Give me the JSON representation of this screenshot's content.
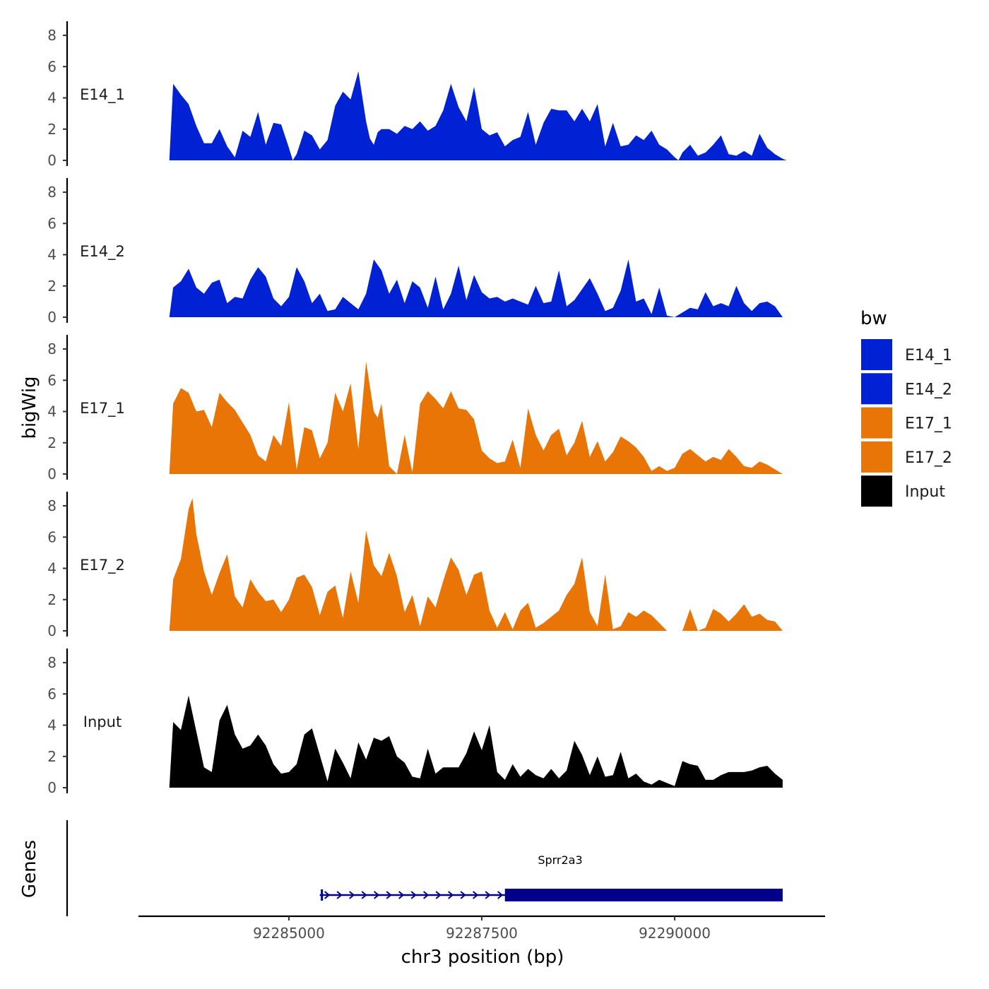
{
  "chart_data": {
    "type": "area",
    "ylabel": "bigWig",
    "xlabel": "chr3 position (bp)",
    "genes_label": "Genes",
    "xlim": [
      92283050,
      92291950
    ],
    "x_ticks": [
      92285000,
      92287500,
      92290000
    ],
    "x_tick_labels": [
      "92285000",
      "92287500",
      "92290000"
    ],
    "ylim": [
      0,
      8.5
    ],
    "y_ticks": [
      0,
      2,
      4,
      6,
      8
    ],
    "y_tick_labels": [
      "0",
      "2",
      "4",
      "6",
      "8"
    ],
    "legend": {
      "title": "bw",
      "position": "right",
      "entries": [
        {
          "label": "E14_1",
          "color": "#0022d4"
        },
        {
          "label": "E14_2",
          "color": "#0022d4"
        },
        {
          "label": "E17_1",
          "color": "#e87506"
        },
        {
          "label": "E17_2",
          "color": "#e87506"
        },
        {
          "label": "Input",
          "color": "#000000"
        }
      ]
    },
    "series": [
      {
        "name": "E14_1",
        "color": "#0022d4",
        "x": [
          92283450,
          92283500,
          92283600,
          92283700,
          92283800,
          92283900,
          92284000,
          92284100,
          92284200,
          92284300,
          92284400,
          92284500,
          92284600,
          92284700,
          92284800,
          92284900,
          92285000,
          92285050,
          92285100,
          92285200,
          92285300,
          92285400,
          92285500,
          92285600,
          92285700,
          92285800,
          92285900,
          92286000,
          92286050,
          92286100,
          92286150,
          92286200,
          92286300,
          92286400,
          92286500,
          92286600,
          92286700,
          92286800,
          92286900,
          92287000,
          92287100,
          92287200,
          92287300,
          92287400,
          92287500,
          92287600,
          92287700,
          92287800,
          92287900,
          92288000,
          92288100,
          92288200,
          92288300,
          92288400,
          92288500,
          92288600,
          92288700,
          92288800,
          92288900,
          92289000,
          92289100,
          92289200,
          92289300,
          92289400,
          92289500,
          92289600,
          92289700,
          92289800,
          92289900,
          92290000,
          92290050,
          92290100,
          92290200,
          92290300,
          92290400,
          92290500,
          92290600,
          92290700,
          92290800,
          92290900,
          92291000,
          92291100,
          92291200,
          92291300,
          92291400,
          92291450
        ],
        "y": [
          0,
          4.9,
          4.2,
          3.6,
          2.2,
          1.1,
          1.1,
          2.0,
          0.9,
          0.2,
          1.9,
          1.5,
          3.1,
          1.0,
          2.4,
          2.3,
          0.8,
          0,
          0.4,
          1.9,
          1.6,
          0.7,
          1.3,
          3.5,
          4.4,
          3.9,
          5.7,
          2.5,
          1.4,
          1.0,
          1.8,
          2.0,
          2.0,
          1.7,
          2.2,
          2.0,
          2.5,
          1.9,
          2.2,
          3.2,
          4.9,
          3.4,
          2.5,
          4.7,
          2.0,
          1.6,
          1.8,
          0.9,
          1.3,
          1.5,
          3.1,
          1.0,
          2.4,
          3.3,
          3.2,
          3.2,
          2.5,
          3.3,
          2.5,
          3.6,
          0.9,
          2.4,
          0.9,
          1.0,
          1.6,
          1.3,
          1.9,
          1.0,
          0.7,
          0.2,
          0,
          0.5,
          1.0,
          0.3,
          0.5,
          1.0,
          1.6,
          0.4,
          0.3,
          0.6,
          0.3,
          1.7,
          0.8,
          0.4,
          0.1,
          0
        ]
      },
      {
        "name": "E14_2",
        "color": "#0022d4",
        "x": [
          92283450,
          92283500,
          92283600,
          92283700,
          92283800,
          92283900,
          92284000,
          92284100,
          92284200,
          92284300,
          92284400,
          92284500,
          92284600,
          92284700,
          92284800,
          92284900,
          92285000,
          92285100,
          92285200,
          92285300,
          92285400,
          92285500,
          92285600,
          92285700,
          92285800,
          92285900,
          92286000,
          92286100,
          92286200,
          92286300,
          92286400,
          92286500,
          92286600,
          92286700,
          92286800,
          92286900,
          92287000,
          92287100,
          92287200,
          92287300,
          92287400,
          92287500,
          92287600,
          92287700,
          92287800,
          92287900,
          92288000,
          92288100,
          92288200,
          92288300,
          92288400,
          92288500,
          92288600,
          92288700,
          92288800,
          92288900,
          92289000,
          92289100,
          92289200,
          92289300,
          92289400,
          92289500,
          92289600,
          92289700,
          92289800,
          92289900,
          92290000,
          92290100,
          92290200,
          92290300,
          92290400,
          92290500,
          92290600,
          92290700,
          92290800,
          92290900,
          92291000,
          92291100,
          92291200,
          92291300,
          92291400
        ],
        "y": [
          0,
          1.9,
          2.3,
          3.1,
          1.9,
          1.5,
          2.2,
          2.4,
          0.9,
          1.3,
          1.2,
          2.4,
          3.2,
          2.6,
          1.2,
          0.7,
          1.3,
          3.2,
          2.3,
          0.9,
          1.5,
          0.4,
          0.5,
          1.3,
          0.9,
          0.5,
          1.5,
          3.7,
          3.0,
          1.5,
          2.4,
          0.9,
          2.3,
          1.9,
          0.6,
          2.6,
          0.5,
          1.5,
          3.3,
          1.1,
          2.7,
          1.6,
          1.2,
          1.3,
          1.0,
          1.2,
          1.0,
          0.8,
          2.0,
          0.9,
          1.0,
          3.0,
          0.7,
          1.1,
          1.8,
          2.5,
          1.5,
          0.4,
          0.6,
          1.7,
          3.7,
          1.0,
          1.2,
          0.2,
          1.9,
          0.1,
          0,
          0.3,
          0.6,
          0.5,
          1.6,
          0.7,
          0.9,
          0.7,
          2.0,
          0.9,
          0.4,
          0.9,
          1.0,
          0.7,
          0
        ]
      },
      {
        "name": "E17_1",
        "color": "#e87506",
        "x": [
          92283450,
          92283500,
          92283600,
          92283700,
          92283800,
          92283900,
          92284000,
          92284100,
          92284200,
          92284300,
          92284400,
          92284500,
          92284600,
          92284700,
          92284800,
          92284900,
          92285000,
          92285100,
          92285200,
          92285300,
          92285400,
          92285500,
          92285600,
          92285700,
          92285800,
          92285900,
          92286000,
          92286100,
          92286150,
          92286200,
          92286300,
          92286400,
          92286500,
          92286600,
          92286700,
          92286800,
          92286900,
          92287000,
          92287100,
          92287200,
          92287300,
          92287400,
          92287500,
          92287600,
          92287700,
          92287800,
          92287900,
          92288000,
          92288100,
          92288200,
          92288300,
          92288400,
          92288500,
          92288600,
          92288700,
          92288800,
          92288900,
          92289000,
          92289100,
          92289200,
          92289300,
          92289400,
          92289500,
          92289600,
          92289700,
          92289800,
          92289900,
          92290000,
          92290100,
          92290200,
          92290300,
          92290400,
          92290500,
          92290600,
          92290700,
          92290800,
          92290900,
          92291000,
          92291100,
          92291200,
          92291300,
          92291400
        ],
        "y": [
          0,
          4.5,
          5.5,
          5.2,
          4.0,
          4.1,
          3.0,
          5.2,
          4.6,
          4.1,
          3.3,
          2.5,
          1.2,
          0.8,
          2.5,
          1.8,
          4.6,
          0.3,
          3.0,
          2.8,
          1.0,
          2.0,
          5.2,
          4.0,
          5.8,
          1.6,
          7.2,
          4.0,
          3.6,
          4.5,
          0.5,
          0,
          2.5,
          0.1,
          4.5,
          5.3,
          4.8,
          4.2,
          5.3,
          4.2,
          4.1,
          3.5,
          1.5,
          1.0,
          0.7,
          0.8,
          2.2,
          0.4,
          4.2,
          2.5,
          1.5,
          2.5,
          2.9,
          1.2,
          2.0,
          3.4,
          1.1,
          2.1,
          0.8,
          1.4,
          2.4,
          2.1,
          1.7,
          1.1,
          0.2,
          0.5,
          0.2,
          0.4,
          1.3,
          1.6,
          1.2,
          0.8,
          1.1,
          0.9,
          1.6,
          1.1,
          0.5,
          0.4,
          0.8,
          0.6,
          0.3,
          0
        ]
      },
      {
        "name": "E17_2",
        "color": "#e87506",
        "x": [
          92283450,
          92283500,
          92283600,
          92283700,
          92283750,
          92283800,
          92283900,
          92284000,
          92284100,
          92284200,
          92284300,
          92284400,
          92284500,
          92284600,
          92284700,
          92284800,
          92284900,
          92285000,
          92285100,
          92285200,
          92285300,
          92285400,
          92285500,
          92285600,
          92285700,
          92285800,
          92285900,
          92286000,
          92286100,
          92286200,
          92286300,
          92286400,
          92286500,
          92286600,
          92286700,
          92286800,
          92286900,
          92287000,
          92287100,
          92287200,
          92287300,
          92287400,
          92287500,
          92287600,
          92287700,
          92287800,
          92287900,
          92288000,
          92288100,
          92288200,
          92288300,
          92288400,
          92288500,
          92288600,
          92288700,
          92288800,
          92288900,
          92289000,
          92289100,
          92289200,
          92289300,
          92289400,
          92289500,
          92289600,
          92289700,
          92289800,
          92289900,
          92290000,
          92290100,
          92290200,
          92290300,
          92290400,
          92290500,
          92290600,
          92290700,
          92290800,
          92290900,
          92291000,
          92291100,
          92291200,
          92291300,
          92291400
        ],
        "y": [
          0,
          3.3,
          4.6,
          7.8,
          8.5,
          6.2,
          3.8,
          2.3,
          3.7,
          4.9,
          2.2,
          1.5,
          3.3,
          2.5,
          1.9,
          2.0,
          1.2,
          2.0,
          3.4,
          3.6,
          2.8,
          1.0,
          2.5,
          2.9,
          0.8,
          3.8,
          1.8,
          6.4,
          4.2,
          3.5,
          5.0,
          3.5,
          1.2,
          2.3,
          0.3,
          2.2,
          1.5,
          3.2,
          4.7,
          3.9,
          2.3,
          3.6,
          3.8,
          1.3,
          0.2,
          1.2,
          0.1,
          1.3,
          1.8,
          0.2,
          0.5,
          0.9,
          1.3,
          2.3,
          3.0,
          4.7,
          1.2,
          0.3,
          3.6,
          0.1,
          0.3,
          1.2,
          0.9,
          1.3,
          1.0,
          0.5,
          0,
          0,
          0,
          1.4,
          0,
          0.2,
          1.4,
          1.1,
          0.6,
          1.1,
          1.7,
          0.9,
          1.1,
          0.7,
          0.6,
          0
        ]
      },
      {
        "name": "Input",
        "color": "#000000",
        "x": [
          92283450,
          92283500,
          92283600,
          92283700,
          92283800,
          92283900,
          92284000,
          92284100,
          92284200,
          92284300,
          92284400,
          92284500,
          92284600,
          92284700,
          92284800,
          92284900,
          92285000,
          92285100,
          92285200,
          92285300,
          92285400,
          92285500,
          92285600,
          92285700,
          92285800,
          92285900,
          92286000,
          92286100,
          92286200,
          92286300,
          92286400,
          92286500,
          92286600,
          92286700,
          92286800,
          92286900,
          92287000,
          92287100,
          92287200,
          92287300,
          92287400,
          92287500,
          92287600,
          92287700,
          92287800,
          92287900,
          92288000,
          92288100,
          92288200,
          92288300,
          92288400,
          92288500,
          92288600,
          92288700,
          92288800,
          92288900,
          92289000,
          92289100,
          92289200,
          92289300,
          92289400,
          92289500,
          92289600,
          92289700,
          92289800,
          92289900,
          92290000,
          92290100,
          92290200,
          92290300,
          92290400,
          92290500,
          92290600,
          92290700,
          92290800,
          92290900,
          92291000,
          92291100,
          92291200,
          92291300,
          92291400
        ],
        "y": [
          0,
          4.2,
          3.7,
          5.9,
          3.6,
          1.3,
          1.0,
          4.3,
          5.3,
          3.4,
          2.5,
          2.7,
          3.4,
          2.7,
          1.5,
          0.9,
          1.0,
          1.5,
          3.4,
          3.8,
          2.1,
          0.4,
          2.5,
          1.6,
          0.6,
          2.9,
          1.8,
          3.2,
          3.0,
          3.3,
          2.0,
          1.6,
          0.7,
          0.6,
          2.5,
          0.9,
          1.3,
          1.3,
          1.3,
          2.2,
          3.6,
          2.4,
          4.0,
          1.0,
          0.5,
          1.5,
          0.7,
          1.2,
          0.8,
          0.6,
          1.2,
          0.6,
          1.1,
          3.0,
          2.1,
          0.8,
          2.0,
          0.7,
          0.8,
          2.3,
          0.6,
          0.9,
          0.4,
          0.2,
          0.5,
          0.3,
          0.1,
          1.7,
          1.5,
          1.4,
          0.5,
          0.5,
          0.8,
          1.0,
          1.0,
          1.0,
          1.1,
          1.3,
          1.4,
          0.9,
          0.5
        ]
      }
    ],
    "genes": [
      {
        "name": "Sprr2a3",
        "color": "#00008b",
        "start": 92285400,
        "end": 92291400,
        "thick_start": 92287800,
        "thick_end": 92291400,
        "strand": "+"
      }
    ]
  }
}
